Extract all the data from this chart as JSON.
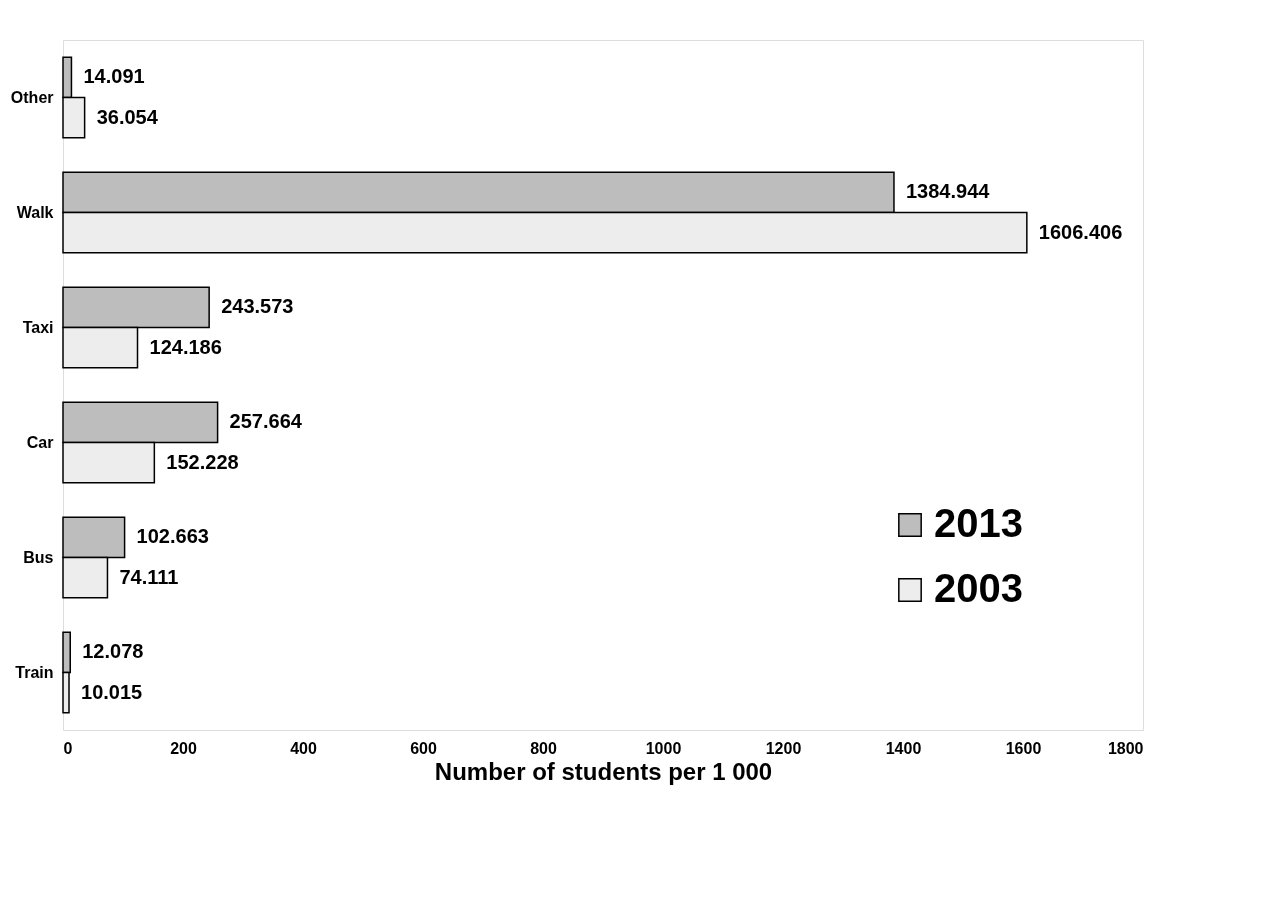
{
  "chart_data": {
    "type": "bar",
    "orientation": "horizontal",
    "xlabel": "Number of students per 1 000",
    "categories": [
      "Other",
      "Walk",
      "Taxi",
      "Car",
      "Bus",
      "Train"
    ],
    "series": [
      {
        "name": "2013",
        "color": "#bdbdbd",
        "values": [
          14.091,
          1384.944,
          243.573,
          257.664,
          102.663,
          12.078
        ]
      },
      {
        "name": "2003",
        "color": "#ededed",
        "values": [
          36.054,
          1606.406,
          124.186,
          152.228,
          74.111,
          10.015
        ]
      }
    ],
    "xlim": [
      0,
      1800
    ],
    "xticks": [
      0,
      200,
      400,
      600,
      800,
      1000,
      1200,
      1400,
      1600,
      1800
    ],
    "data_labels": true,
    "grid": false,
    "legend": "bottom right"
  }
}
